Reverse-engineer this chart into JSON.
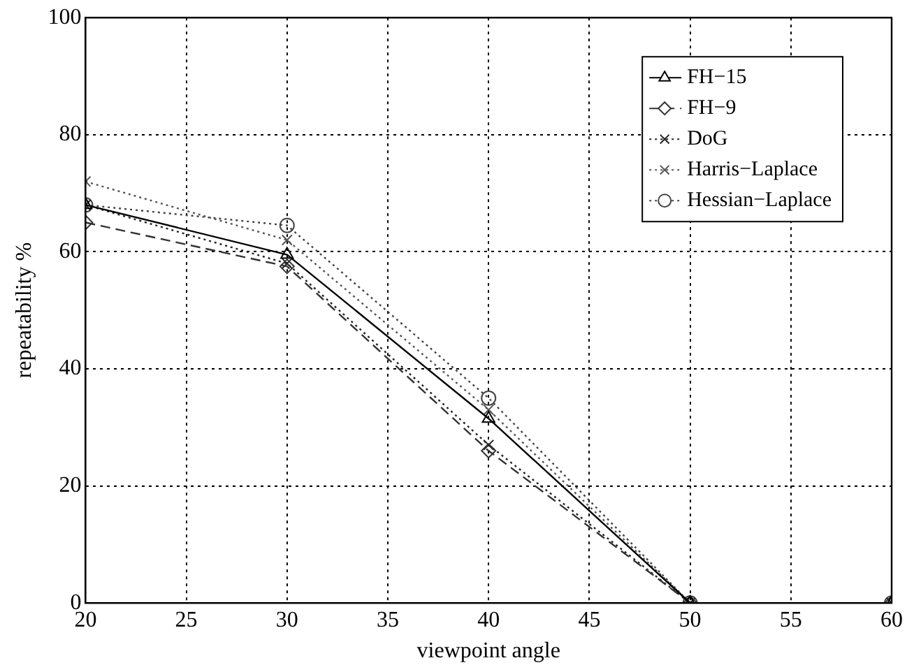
{
  "chart_data": {
    "type": "line",
    "xlabel": "viewpoint angle",
    "ylabel": "repeatability %",
    "x": [
      20,
      30,
      40,
      50,
      60
    ],
    "series": [
      {
        "name": "FH−15",
        "color": "#000000",
        "marker": "triangle",
        "line_style": "solid",
        "values": [
          68,
          59.5,
          31.5,
          0,
          0
        ]
      },
      {
        "name": "FH−9",
        "color": "#333333",
        "marker": "diamond",
        "line_style": "dashed",
        "values": [
          65,
          57.5,
          26,
          0,
          0
        ]
      },
      {
        "name": "DoG",
        "color": "#222222",
        "marker": "cross",
        "line_style": "dotted",
        "values": [
          68,
          58,
          27,
          0,
          0
        ]
      },
      {
        "name": "Harris−Laplace",
        "color": "#555555",
        "marker": "cross",
        "line_style": "dotted",
        "values": [
          72,
          62,
          33,
          0,
          0
        ]
      },
      {
        "name": "Hessian−Laplace",
        "color": "#444444",
        "marker": "circle",
        "line_style": "dotted",
        "values": [
          68,
          64.5,
          35,
          0,
          0
        ]
      }
    ],
    "xlim": [
      20,
      60
    ],
    "xticks": [
      20,
      25,
      30,
      35,
      40,
      45,
      50,
      55,
      60
    ],
    "ylim": [
      0,
      100
    ],
    "yticks": [
      0,
      20,
      40,
      60,
      80,
      100
    ],
    "grid": true,
    "legend": "top right"
  }
}
